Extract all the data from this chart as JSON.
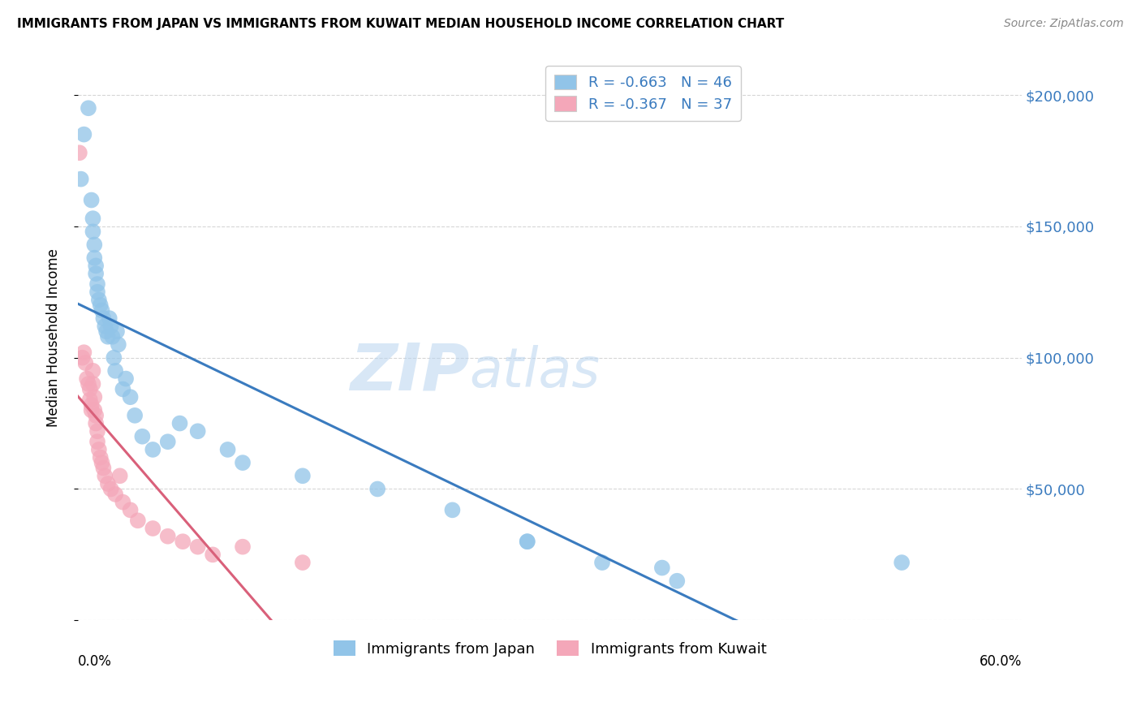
{
  "title": "IMMIGRANTS FROM JAPAN VS IMMIGRANTS FROM KUWAIT MEDIAN HOUSEHOLD INCOME CORRELATION CHART",
  "source": "Source: ZipAtlas.com",
  "ylabel": "Median Household Income",
  "yticks": [
    0,
    50000,
    100000,
    150000,
    200000
  ],
  "ytick_labels": [
    "",
    "$50,000",
    "$100,000",
    "$150,000",
    "$200,000"
  ],
  "xlim": [
    0.0,
    0.63
  ],
  "ylim": [
    0,
    215000
  ],
  "legend_japan_r": "R = -0.663",
  "legend_japan_n": "N = 46",
  "legend_kuwait_r": "R = -0.367",
  "legend_kuwait_n": "N = 37",
  "japan_color": "#91c4e8",
  "kuwait_color": "#f4a7b9",
  "japan_line_color": "#3a7bbf",
  "kuwait_line_color": "#d9607a",
  "background_color": "#ffffff",
  "watermark_zip": "ZIP",
  "watermark_atlas": "atlas",
  "watermark_color_zip": "#c8dff5",
  "watermark_color_atlas": "#c8dff5",
  "japan_x": [
    0.002,
    0.004,
    0.007,
    0.009,
    0.01,
    0.01,
    0.011,
    0.011,
    0.012,
    0.012,
    0.013,
    0.013,
    0.014,
    0.015,
    0.016,
    0.017,
    0.018,
    0.019,
    0.02,
    0.021,
    0.022,
    0.023,
    0.024,
    0.025,
    0.026,
    0.027,
    0.03,
    0.032,
    0.035,
    0.038,
    0.043,
    0.05,
    0.06,
    0.068,
    0.08,
    0.1,
    0.11,
    0.15,
    0.2,
    0.25,
    0.3,
    0.35,
    0.39,
    0.55,
    0.3,
    0.4
  ],
  "japan_y": [
    168000,
    185000,
    195000,
    160000,
    153000,
    148000,
    143000,
    138000,
    135000,
    132000,
    128000,
    125000,
    122000,
    120000,
    118000,
    115000,
    112000,
    110000,
    108000,
    115000,
    112000,
    108000,
    100000,
    95000,
    110000,
    105000,
    88000,
    92000,
    85000,
    78000,
    70000,
    65000,
    68000,
    75000,
    72000,
    65000,
    60000,
    55000,
    50000,
    42000,
    30000,
    22000,
    20000,
    22000,
    30000,
    15000
  ],
  "kuwait_x": [
    0.001,
    0.003,
    0.004,
    0.005,
    0.006,
    0.007,
    0.008,
    0.008,
    0.009,
    0.009,
    0.01,
    0.01,
    0.011,
    0.011,
    0.012,
    0.012,
    0.013,
    0.013,
    0.014,
    0.015,
    0.016,
    0.017,
    0.018,
    0.02,
    0.022,
    0.025,
    0.028,
    0.03,
    0.035,
    0.04,
    0.05,
    0.06,
    0.07,
    0.08,
    0.09,
    0.11,
    0.15
  ],
  "kuwait_y": [
    178000,
    100000,
    102000,
    98000,
    92000,
    90000,
    88000,
    84000,
    82000,
    80000,
    95000,
    90000,
    85000,
    80000,
    78000,
    75000,
    72000,
    68000,
    65000,
    62000,
    60000,
    58000,
    55000,
    52000,
    50000,
    48000,
    55000,
    45000,
    42000,
    38000,
    35000,
    32000,
    30000,
    28000,
    25000,
    28000,
    22000
  ]
}
